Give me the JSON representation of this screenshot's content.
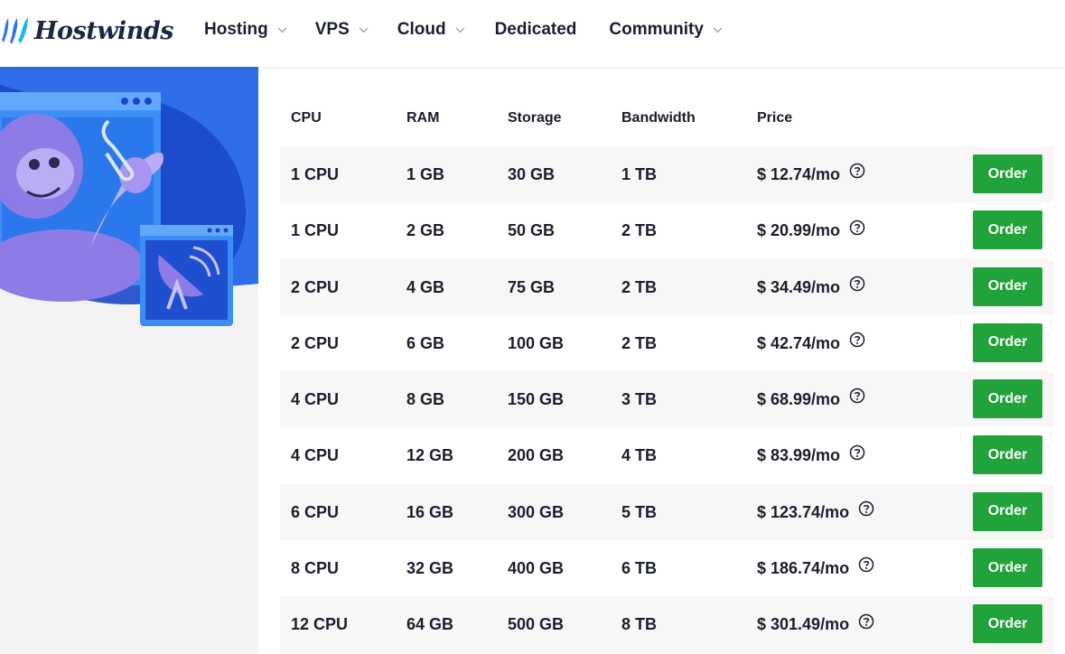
{
  "brand": {
    "name": "Hostwinds",
    "accent": "#20a33a",
    "logo_blue": "#2f74f4",
    "nav_text": "#1b1f33"
  },
  "nav": [
    {
      "label": "Hosting",
      "dropdown": true
    },
    {
      "label": "VPS",
      "dropdown": true
    },
    {
      "label": "Cloud",
      "dropdown": true
    },
    {
      "label": "Dedicated",
      "dropdown": false
    },
    {
      "label": "Community",
      "dropdown": true
    }
  ],
  "table": {
    "headers": {
      "cpu": "CPU",
      "ram": "RAM",
      "storage": "Storage",
      "bandwidth": "Bandwidth",
      "price": "Price"
    },
    "order_label": "Order",
    "rows": [
      {
        "cpu": "1 CPU",
        "ram": "1 GB",
        "storage": "30 GB",
        "bandwidth": "1 TB",
        "price": "$ 12.74/mo"
      },
      {
        "cpu": "1 CPU",
        "ram": "2 GB",
        "storage": "50 GB",
        "bandwidth": "2 TB",
        "price": "$ 20.99/mo"
      },
      {
        "cpu": "2 CPU",
        "ram": "4 GB",
        "storage": "75 GB",
        "bandwidth": "2 TB",
        "price": "$ 34.49/mo"
      },
      {
        "cpu": "2 CPU",
        "ram": "6 GB",
        "storage": "100 GB",
        "bandwidth": "2 TB",
        "price": "$ 42.74/mo"
      },
      {
        "cpu": "4 CPU",
        "ram": "8 GB",
        "storage": "150 GB",
        "bandwidth": "3 TB",
        "price": "$ 68.99/mo"
      },
      {
        "cpu": "4 CPU",
        "ram": "12 GB",
        "storage": "200 GB",
        "bandwidth": "4 TB",
        "price": "$ 83.99/mo"
      },
      {
        "cpu": "6 CPU",
        "ram": "16 GB",
        "storage": "300 GB",
        "bandwidth": "5 TB",
        "price": "$ 123.74/mo"
      },
      {
        "cpu": "8 CPU",
        "ram": "32 GB",
        "storage": "400 GB",
        "bandwidth": "6 TB",
        "price": "$ 186.74/mo"
      },
      {
        "cpu": "12 CPU",
        "ram": "64 GB",
        "storage": "500 GB",
        "bandwidth": "8 TB",
        "price": "$ 301.49/mo"
      }
    ]
  },
  "icons": {
    "logo": "wave-logo-icon",
    "help": "question-circle-icon",
    "chevron": "chevron-down-icon"
  }
}
